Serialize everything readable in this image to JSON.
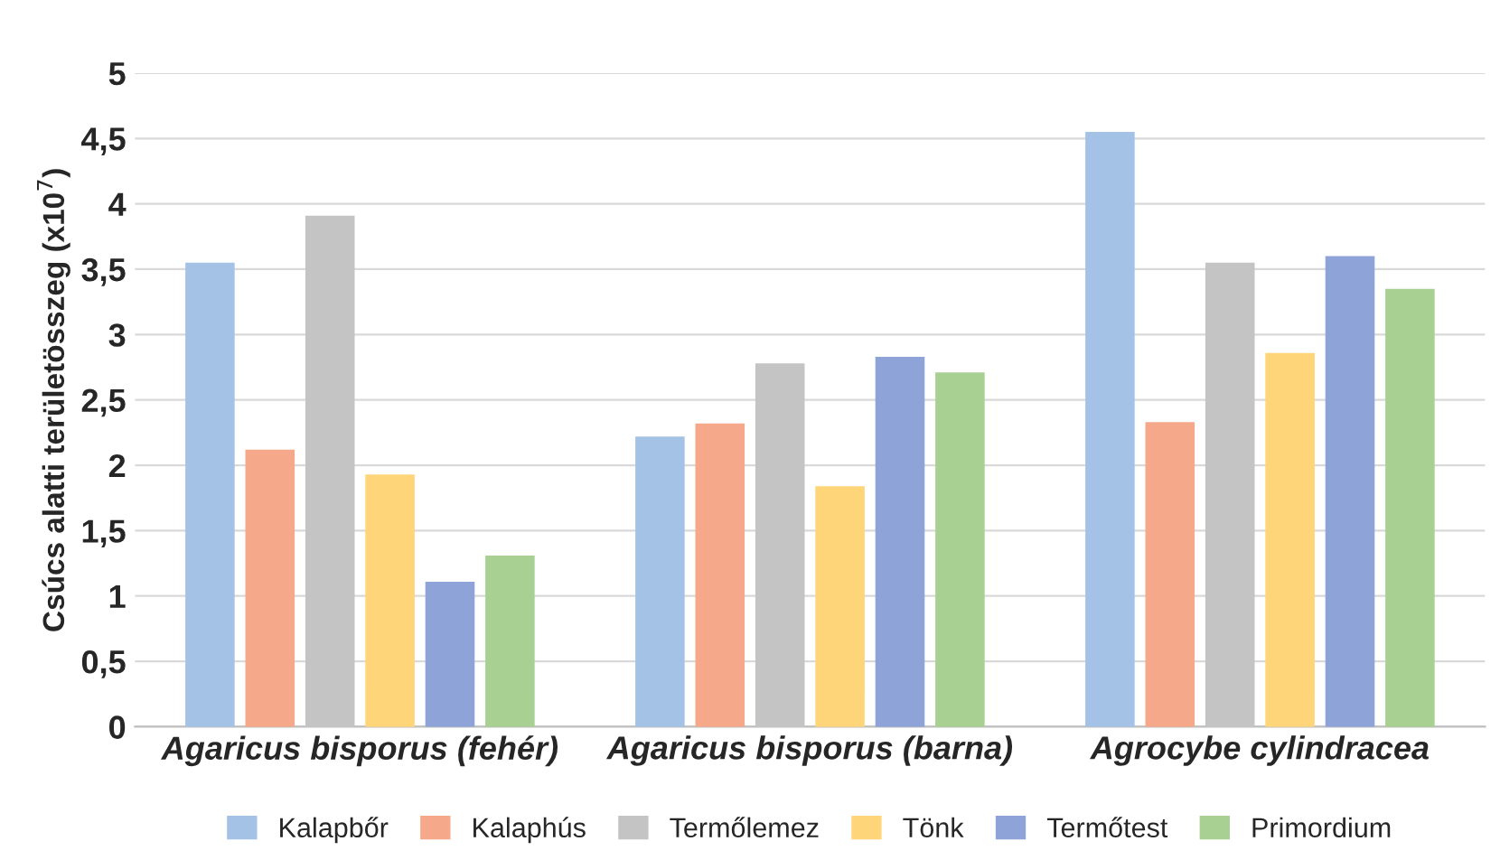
{
  "chart_data": {
    "type": "bar",
    "ylabel": "Csúcs alatti területösszeg (x10$^{7}$)",
    "categories": [
      "Agaricus bisporus (fehér)",
      "Agaricus bisporus (barna)",
      "Agrocybe cylindracea"
    ],
    "series": [
      {
        "name": "Kalapbőr",
        "color": "#a4c2e6",
        "values": [
          3.54,
          2.21,
          4.54
        ]
      },
      {
        "name": "Kalaphús",
        "color": "#f5a98a",
        "values": [
          2.11,
          2.31,
          2.32
        ]
      },
      {
        "name": "Termőlemez",
        "color": "#c4c4c4",
        "values": [
          3.9,
          2.77,
          3.54
        ]
      },
      {
        "name": "Tönk",
        "color": "#ffd57a",
        "values": [
          1.92,
          1.83,
          2.85
        ]
      },
      {
        "name": "Termőtest",
        "color": "#8ea3d8",
        "values": [
          1.1,
          2.82,
          3.59
        ]
      },
      {
        "name": "Primordium",
        "color": "#a8d092",
        "values": [
          1.3,
          2.7,
          3.34
        ]
      }
    ],
    "ylim": [
      0,
      5
    ],
    "yticks": [
      0,
      {
        "value": 0.5,
        "label": "0,5"
      },
      1,
      {
        "value": 1.5,
        "label": "1,5"
      },
      2,
      {
        "value": 2.5,
        "label": "2,5"
      },
      3,
      {
        "value": 3.5,
        "label": "3,5"
      },
      4,
      {
        "value": 4.5,
        "label": "4,5"
      },
      5
    ],
    "grid": "y",
    "legend": "bottom"
  }
}
